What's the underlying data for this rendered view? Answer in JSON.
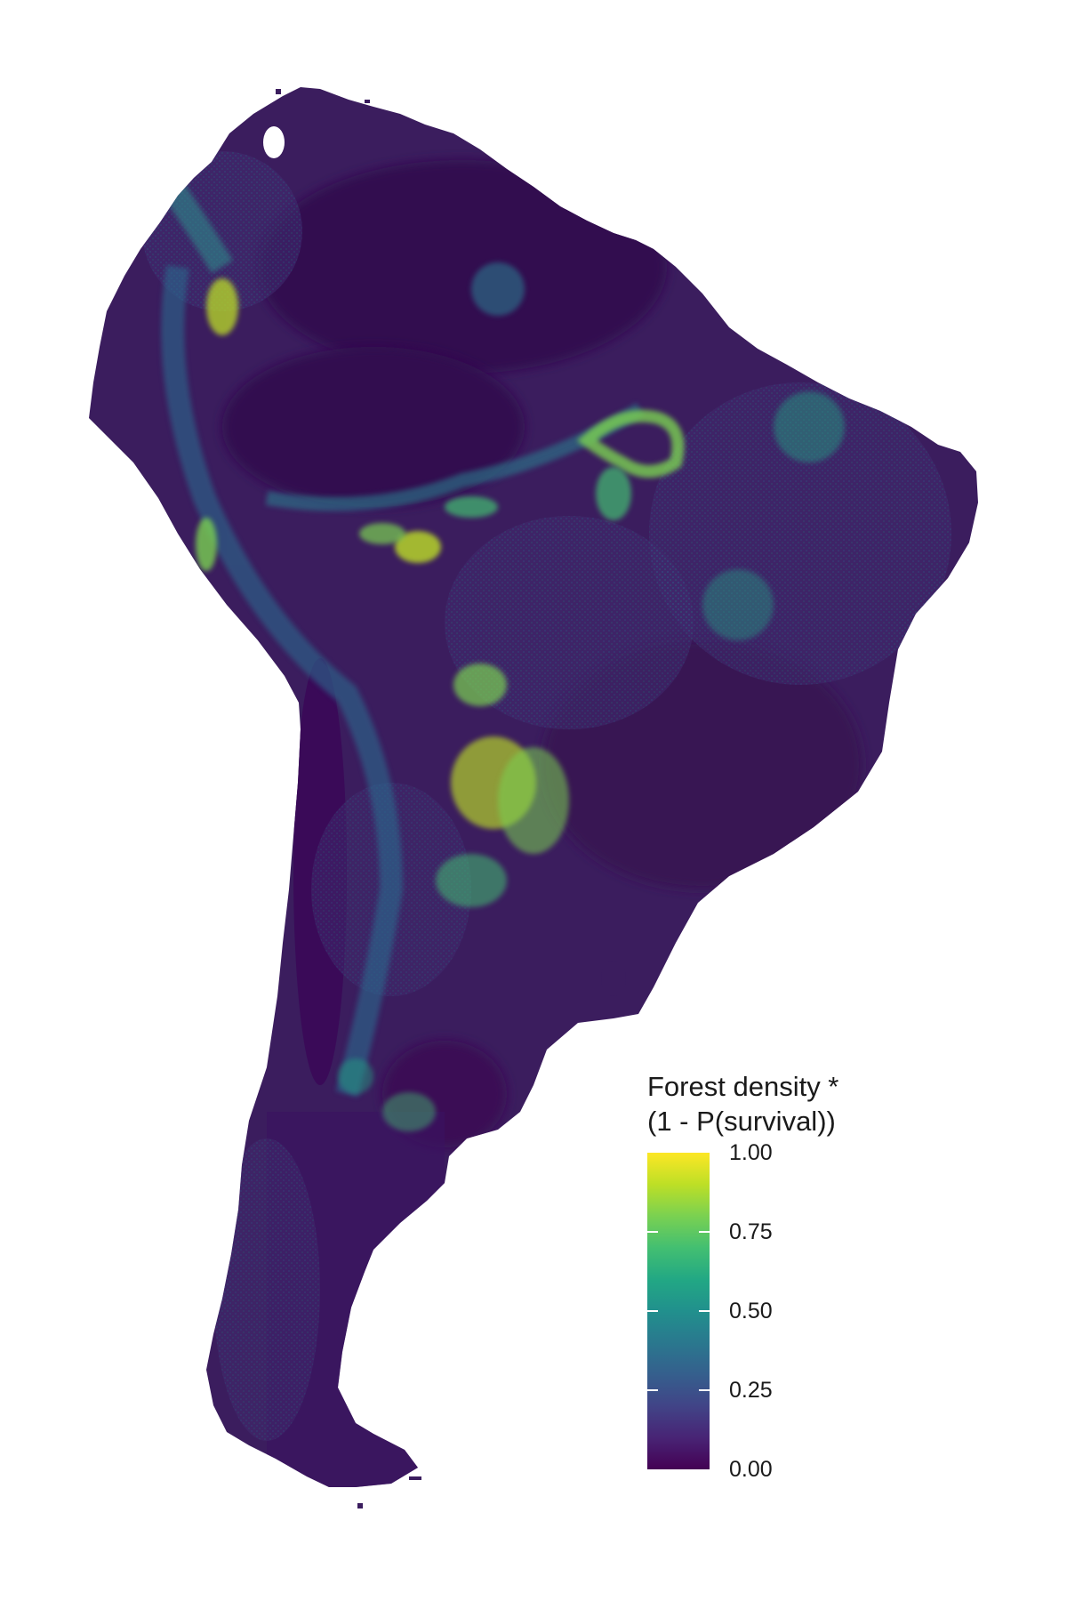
{
  "legend": {
    "title_line1": "Forest density *",
    "title_line2": "(1 - P(survival))",
    "scale_min": 0,
    "scale_max": 1,
    "ticks": [
      "1.00",
      "0.75",
      "0.50",
      "0.25",
      "0.00"
    ],
    "tick_values": [
      1.0,
      0.75,
      0.5,
      0.25,
      0.0
    ],
    "colors": [
      "#440154",
      "#482475",
      "#414487",
      "#355f8d",
      "#2a788e",
      "#21908d",
      "#22a884",
      "#43bf71",
      "#7ad151",
      "#bddf26",
      "#fde725"
    ]
  },
  "map": {
    "region": "South America",
    "background_color": "#ffffff",
    "base_color": "#3b1d5e"
  }
}
